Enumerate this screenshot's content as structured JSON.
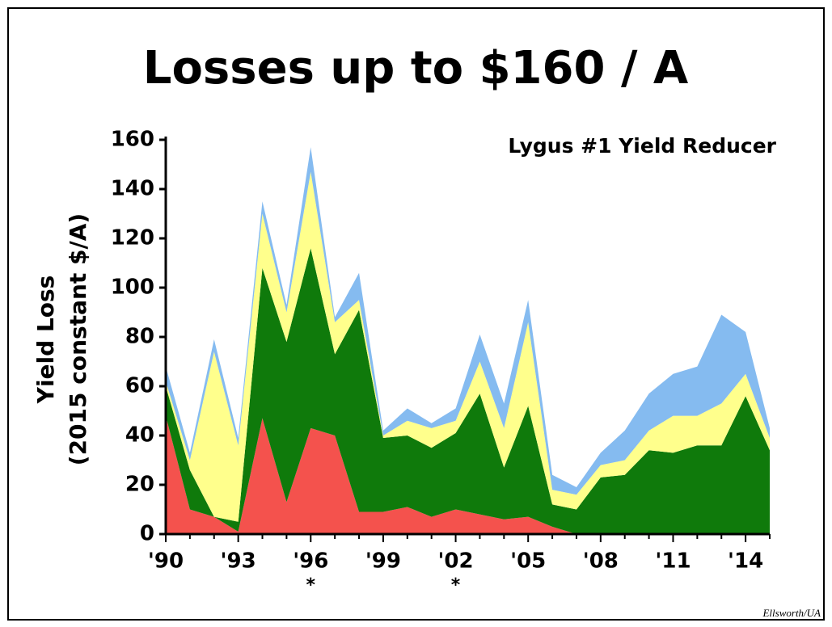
{
  "chart_data": {
    "type": "stacked_area",
    "title": "Losses up to $160 / A",
    "subtitle": "Lygus #1 Yield Reducer",
    "y_label": [
      "Yield Loss",
      "(2015 constant $/A)"
    ],
    "credit": "Ellsworth/UA",
    "categories": [
      "'90",
      null,
      null,
      "'93",
      null,
      null,
      "'96",
      null,
      null,
      "'99",
      null,
      null,
      "'02",
      null,
      null,
      "'05",
      null,
      null,
      "'08",
      null,
      null,
      "'11",
      null,
      null,
      "'14",
      null
    ],
    "annotations": [
      {
        "text": "*",
        "at": "'96"
      },
      {
        "text": "*",
        "at": "'02"
      }
    ],
    "series": [
      {
        "color": "#f4524d",
        "values": [
          48,
          10,
          7,
          1,
          47,
          13,
          43,
          40,
          9,
          9,
          11,
          7,
          10,
          8,
          6,
          7,
          3,
          0,
          0,
          0,
          0,
          0,
          0,
          0,
          0,
          0
        ]
      },
      {
        "color": "#0f7a0b",
        "values": [
          12,
          16,
          0,
          4,
          61,
          65,
          73,
          33,
          82,
          30,
          29,
          28,
          31,
          49,
          21,
          45,
          9,
          10,
          23,
          24,
          34,
          33,
          36,
          36,
          56,
          34
        ]
      },
      {
        "color": "#ffff8c",
        "values": [
          2,
          4,
          67,
          31,
          22,
          12,
          31,
          13,
          4,
          1,
          6,
          8,
          5,
          13,
          16,
          34,
          6,
          6,
          5,
          6,
          8,
          15,
          12,
          17,
          9,
          5
        ]
      },
      {
        "color": "#85bbf0",
        "values": [
          6,
          3,
          5,
          3,
          5,
          3,
          10,
          2,
          11,
          2,
          5,
          2,
          5,
          11,
          10,
          9,
          6,
          3,
          5,
          12,
          15,
          17,
          20,
          36,
          17,
          4
        ]
      }
    ],
    "ylim": [
      0,
      160
    ],
    "yticks": [
      0,
      20,
      40,
      60,
      80,
      100,
      120,
      140,
      160
    ]
  }
}
